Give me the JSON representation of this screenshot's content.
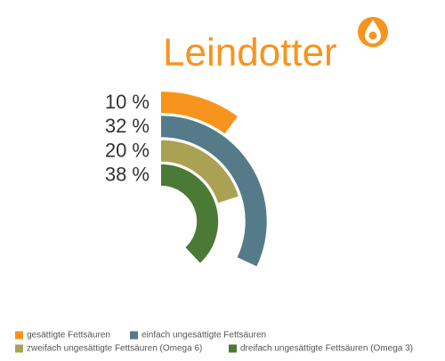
{
  "chart_data": {
    "type": "radial_bar",
    "title": "Leindotter",
    "categories": [
      "gesättigte Fettsäuren",
      "einfach ungesättigte Fettsäuren",
      "zweifach ungesättigte Fettsäuren (Omega 6)",
      "dreifach ungesättigte Fettsäuren (Omega 3)"
    ],
    "values": [
      10,
      32,
      20,
      38
    ],
    "value_labels": [
      "10 %",
      "32 %",
      "20 %",
      "38 %"
    ],
    "colors": [
      "#f7941d",
      "#557b88",
      "#aaa253",
      "#4b7a36"
    ],
    "legend": "bottom-left"
  }
}
